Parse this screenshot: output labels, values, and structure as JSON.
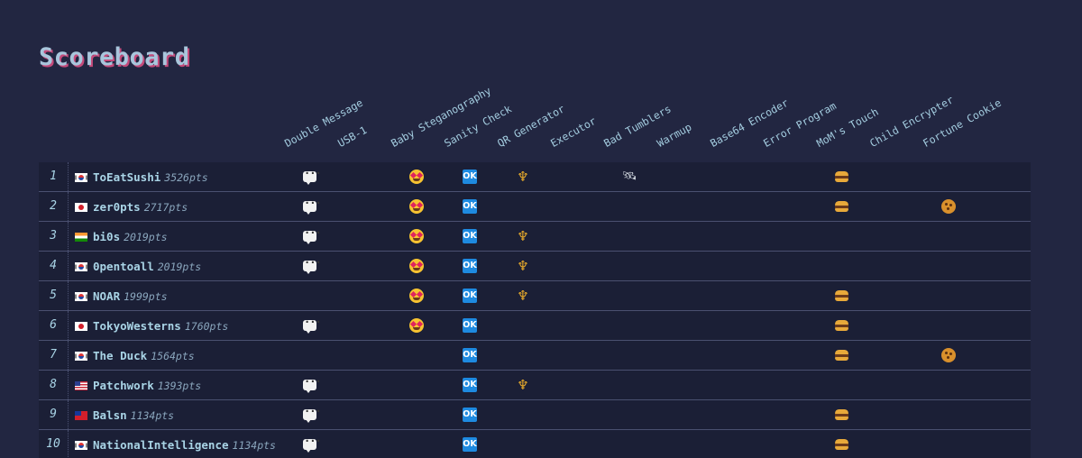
{
  "title": "Scoreboard",
  "challenges": [
    "Double Message",
    "USB-1",
    "Baby Steganography",
    "Sanity Check",
    "QR Generator",
    "Executor",
    "Bad Tumblers",
    "Warmup",
    "Base64 Encoder",
    "Error Program",
    "MoM's Touch",
    "Child Encrypter",
    "Fortune Cookie"
  ],
  "icons": {
    "Double Message": "speech-bubble-icon",
    "Baby Steganography": "star-struck-icon",
    "Sanity Check": "ok-button-icon",
    "QR Generator": "trident-icon",
    "Bad Tumblers": "satellite-icon",
    "MoM's Touch": "hamburger-icon",
    "Fortune Cookie": "cookie-icon"
  },
  "ok_label": "OK",
  "trident_glyph": "♆",
  "satellite_glyph": "🛰",
  "teams": [
    {
      "rank": "1",
      "flag": "kr",
      "name": "ToEatSushi",
      "points": "3526pts",
      "solved": [
        "Double Message",
        "Baby Steganography",
        "Sanity Check",
        "QR Generator",
        "Bad Tumblers",
        "MoM's Touch"
      ]
    },
    {
      "rank": "2",
      "flag": "jp",
      "name": "zer0pts",
      "points": "2717pts",
      "solved": [
        "Double Message",
        "Baby Steganography",
        "Sanity Check",
        "MoM's Touch",
        "Fortune Cookie"
      ]
    },
    {
      "rank": "3",
      "flag": "in",
      "name": "bi0s",
      "points": "2019pts",
      "solved": [
        "Double Message",
        "Baby Steganography",
        "Sanity Check",
        "QR Generator"
      ]
    },
    {
      "rank": "4",
      "flag": "kr",
      "name": "0pentoall",
      "points": "2019pts",
      "solved": [
        "Double Message",
        "Baby Steganography",
        "Sanity Check",
        "QR Generator"
      ]
    },
    {
      "rank": "5",
      "flag": "kr",
      "name": "NOAR",
      "points": "1999pts",
      "solved": [
        "Baby Steganography",
        "Sanity Check",
        "QR Generator",
        "MoM's Touch"
      ]
    },
    {
      "rank": "6",
      "flag": "jp",
      "name": "TokyoWesterns",
      "points": "1760pts",
      "solved": [
        "Double Message",
        "Baby Steganography",
        "Sanity Check",
        "MoM's Touch"
      ]
    },
    {
      "rank": "7",
      "flag": "kr",
      "name": "The Duck",
      "points": "1564pts",
      "solved": [
        "Sanity Check",
        "MoM's Touch",
        "Fortune Cookie"
      ]
    },
    {
      "rank": "8",
      "flag": "us",
      "name": "Patchwork",
      "points": "1393pts",
      "solved": [
        "Double Message",
        "Sanity Check",
        "QR Generator"
      ]
    },
    {
      "rank": "9",
      "flag": "tw",
      "name": "Balsn",
      "points": "1134pts",
      "solved": [
        "Double Message",
        "Sanity Check",
        "MoM's Touch"
      ]
    },
    {
      "rank": "10",
      "flag": "kr",
      "name": "NationalIntelligence",
      "points": "1134pts",
      "solved": [
        "Double Message",
        "Sanity Check",
        "MoM's Touch"
      ]
    }
  ],
  "colors": {
    "background": "#222641",
    "row_background": "#1b1f36",
    "text": "#a9d4e6",
    "title_shadow": "#c44a7a"
  }
}
